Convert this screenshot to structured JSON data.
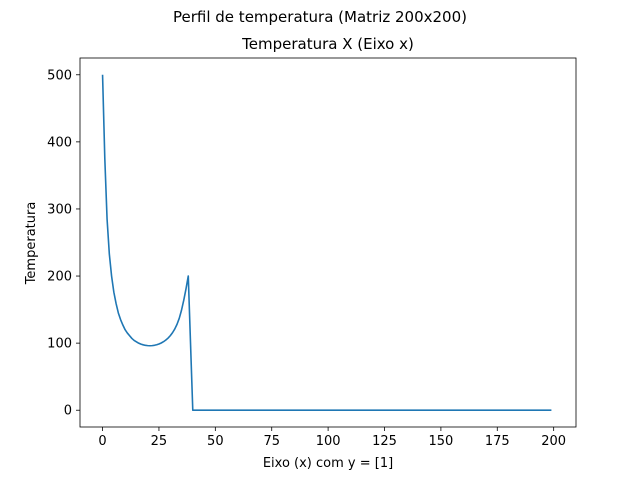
{
  "figure": {
    "suptitle": "Perfil de temperatura (Matriz 200x200)"
  },
  "chart_data": {
    "type": "line",
    "title": "Temperatura X (Eixo x)",
    "xlabel": "Eixo (x) com y = [1]",
    "ylabel": "Temperatura",
    "xlim": [
      -10,
      209.9
    ],
    "ylim": [
      -25,
      525
    ],
    "xticks": [
      0,
      25,
      50,
      75,
      100,
      125,
      150,
      175,
      200
    ],
    "yticks": [
      0,
      100,
      200,
      300,
      400,
      500
    ],
    "grid": false,
    "series": [
      {
        "color": "#1f77b4",
        "x": [
          0,
          1,
          2,
          3,
          4,
          5,
          6,
          7,
          8,
          9,
          10,
          11,
          12,
          13,
          14,
          15,
          16,
          17,
          18,
          19,
          20,
          21,
          22,
          23,
          24,
          25,
          26,
          27,
          28,
          29,
          30,
          31,
          32,
          33,
          34,
          35,
          36,
          37,
          38,
          39,
          40,
          41,
          199
        ],
        "y": [
          500,
          375,
          285,
          233,
          200,
          176,
          159,
          145,
          135,
          127,
          120,
          115,
          111,
          107,
          104,
          102,
          100,
          98.5,
          97.5,
          96.7,
          96.3,
          96.1,
          96.3,
          96.8,
          97.6,
          98.7,
          100.2,
          102.1,
          104.5,
          107.4,
          111,
          115.5,
          121,
          128,
          137,
          149,
          164,
          181,
          200,
          100,
          0,
          0,
          0
        ]
      }
    ]
  }
}
